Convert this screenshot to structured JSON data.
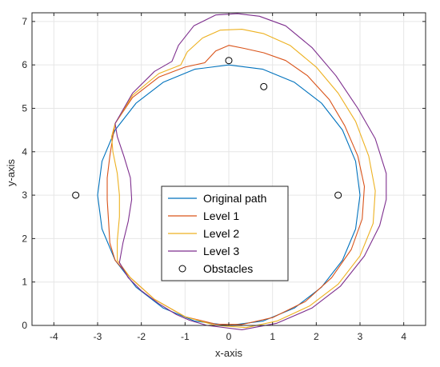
{
  "chart_data": {
    "type": "line",
    "title": "",
    "xlabel": "x-axis",
    "ylabel": "y-axis",
    "xlim": [
      -4.5,
      4.5
    ],
    "ylim": [
      0,
      7.2
    ],
    "xticks": [
      -4,
      -3,
      -2,
      -1,
      0,
      1,
      2,
      3,
      4
    ],
    "yticks": [
      0,
      1,
      2,
      3,
      4,
      5,
      6,
      7
    ],
    "grid": true,
    "legend_position": "center-bottom",
    "series": [
      {
        "name": "Original path",
        "color": "#0072BD",
        "style": "line",
        "points": [
          [
            0,
            6.0
          ],
          [
            0.78,
            5.9
          ],
          [
            1.5,
            5.6
          ],
          [
            2.12,
            5.12
          ],
          [
            2.6,
            4.5
          ],
          [
            2.9,
            3.78
          ],
          [
            3.0,
            3.0
          ],
          [
            2.9,
            2.22
          ],
          [
            2.6,
            1.5
          ],
          [
            2.12,
            0.88
          ],
          [
            1.5,
            0.4
          ],
          [
            0.78,
            0.1
          ],
          [
            0,
            0
          ],
          [
            -0.78,
            0.1
          ],
          [
            -1.5,
            0.4
          ],
          [
            -2.12,
            0.88
          ],
          [
            -2.6,
            1.5
          ],
          [
            -2.9,
            2.22
          ],
          [
            -3.0,
            3.0
          ],
          [
            -2.9,
            3.78
          ],
          [
            -2.6,
            4.5
          ],
          [
            -2.12,
            5.12
          ],
          [
            -1.5,
            5.6
          ],
          [
            -0.78,
            5.9
          ],
          [
            0,
            6.0
          ]
        ]
      },
      {
        "name": "Level 1",
        "color": "#D95319",
        "style": "line",
        "points": [
          [
            -2.6,
            4.65
          ],
          [
            -2.2,
            5.25
          ],
          [
            -1.6,
            5.72
          ],
          [
            -1.0,
            5.95
          ],
          [
            -0.55,
            6.05
          ],
          [
            -0.3,
            6.32
          ],
          [
            0,
            6.45
          ],
          [
            0.35,
            6.38
          ],
          [
            0.8,
            6.28
          ],
          [
            1.3,
            6.1
          ],
          [
            1.8,
            5.75
          ],
          [
            2.3,
            5.2
          ],
          [
            2.65,
            4.6
          ],
          [
            2.95,
            3.9
          ],
          [
            3.1,
            3.2
          ],
          [
            3.05,
            2.45
          ],
          [
            2.8,
            1.75
          ],
          [
            2.35,
            1.1
          ],
          [
            1.75,
            0.55
          ],
          [
            1.0,
            0.18
          ],
          [
            0.3,
            0.02
          ],
          [
            -0.3,
            0.03
          ],
          [
            -1.0,
            0.2
          ],
          [
            -1.7,
            0.6
          ],
          [
            -2.25,
            1.1
          ],
          [
            -2.6,
            1.5
          ],
          [
            -2.72,
            1.9
          ],
          [
            -2.75,
            2.4
          ],
          [
            -2.78,
            2.9
          ],
          [
            -2.78,
            3.4
          ],
          [
            -2.72,
            3.9
          ],
          [
            -2.65,
            4.35
          ],
          [
            -2.6,
            4.65
          ]
        ]
      },
      {
        "name": "Level 2",
        "color": "#EDB120",
        "style": "line",
        "points": [
          [
            -2.6,
            4.65
          ],
          [
            -2.2,
            5.3
          ],
          [
            -1.6,
            5.8
          ],
          [
            -1.1,
            6.0
          ],
          [
            -0.95,
            6.3
          ],
          [
            -0.6,
            6.62
          ],
          [
            -0.2,
            6.8
          ],
          [
            0.3,
            6.82
          ],
          [
            0.8,
            6.72
          ],
          [
            1.4,
            6.45
          ],
          [
            2.0,
            5.95
          ],
          [
            2.5,
            5.35
          ],
          [
            2.9,
            4.7
          ],
          [
            3.2,
            3.9
          ],
          [
            3.35,
            3.1
          ],
          [
            3.3,
            2.35
          ],
          [
            3.0,
            1.6
          ],
          [
            2.5,
            0.95
          ],
          [
            1.85,
            0.45
          ],
          [
            1.1,
            0.1
          ],
          [
            0.4,
            -0.05
          ],
          [
            -0.3,
            0.0
          ],
          [
            -1.0,
            0.2
          ],
          [
            -1.7,
            0.6
          ],
          [
            -2.25,
            1.1
          ],
          [
            -2.55,
            1.5
          ],
          [
            -2.55,
            1.95
          ],
          [
            -2.5,
            2.5
          ],
          [
            -2.5,
            3.0
          ],
          [
            -2.55,
            3.5
          ],
          [
            -2.65,
            4.0
          ],
          [
            -2.68,
            4.35
          ],
          [
            -2.6,
            4.65
          ]
        ]
      },
      {
        "name": "Level 3",
        "color": "#7E2F8E",
        "style": "line",
        "points": [
          [
            -2.6,
            4.65
          ],
          [
            -2.2,
            5.35
          ],
          [
            -1.7,
            5.85
          ],
          [
            -1.3,
            6.08
          ],
          [
            -1.15,
            6.45
          ],
          [
            -0.8,
            6.9
          ],
          [
            -0.3,
            7.15
          ],
          [
            0.2,
            7.18
          ],
          [
            0.7,
            7.12
          ],
          [
            1.3,
            6.9
          ],
          [
            1.9,
            6.4
          ],
          [
            2.45,
            5.75
          ],
          [
            2.95,
            5.0
          ],
          [
            3.35,
            4.3
          ],
          [
            3.6,
            3.5
          ],
          [
            3.6,
            2.9
          ],
          [
            3.45,
            2.3
          ],
          [
            3.1,
            1.6
          ],
          [
            2.55,
            0.9
          ],
          [
            1.9,
            0.4
          ],
          [
            1.1,
            0.05
          ],
          [
            0.3,
            -0.1
          ],
          [
            -0.5,
            0.0
          ],
          [
            -0.9,
            0.12
          ],
          [
            -1.2,
            0.25
          ],
          [
            -1.6,
            0.5
          ],
          [
            -2.0,
            0.8
          ],
          [
            -2.3,
            1.1
          ],
          [
            -2.5,
            1.45
          ],
          [
            -2.42,
            1.9
          ],
          [
            -2.3,
            2.4
          ],
          [
            -2.22,
            2.9
          ],
          [
            -2.25,
            3.4
          ],
          [
            -2.4,
            3.9
          ],
          [
            -2.55,
            4.35
          ],
          [
            -2.6,
            4.65
          ]
        ]
      },
      {
        "name": "Obstacles",
        "color": "#000000",
        "style": "marker",
        "points": [
          [
            -3.5,
            3.0
          ],
          [
            0,
            6.1
          ],
          [
            0.8,
            5.5
          ],
          [
            2.5,
            3.0
          ]
        ]
      }
    ]
  }
}
